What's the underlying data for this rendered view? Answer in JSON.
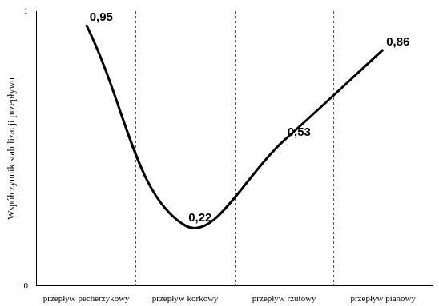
{
  "chart_data": {
    "type": "line",
    "y_label": "Współczynnik stabilizacji przepływu",
    "categories": [
      "przepływ pecherzykowy",
      "przepływ korkowy",
      "przepływ rzutowy",
      "przepływ pianowy"
    ],
    "values": [
      0.95,
      0.22,
      0.53,
      0.86
    ],
    "value_labels": [
      "0,95",
      "0,22",
      "0,53",
      "0,86"
    ],
    "data_labels": true,
    "color": "#000000",
    "line_style": "smooth",
    "marker": "none",
    "ylim": [
      0,
      1
    ],
    "yticks": [
      0,
      1
    ],
    "grid": false,
    "legend": false
  }
}
